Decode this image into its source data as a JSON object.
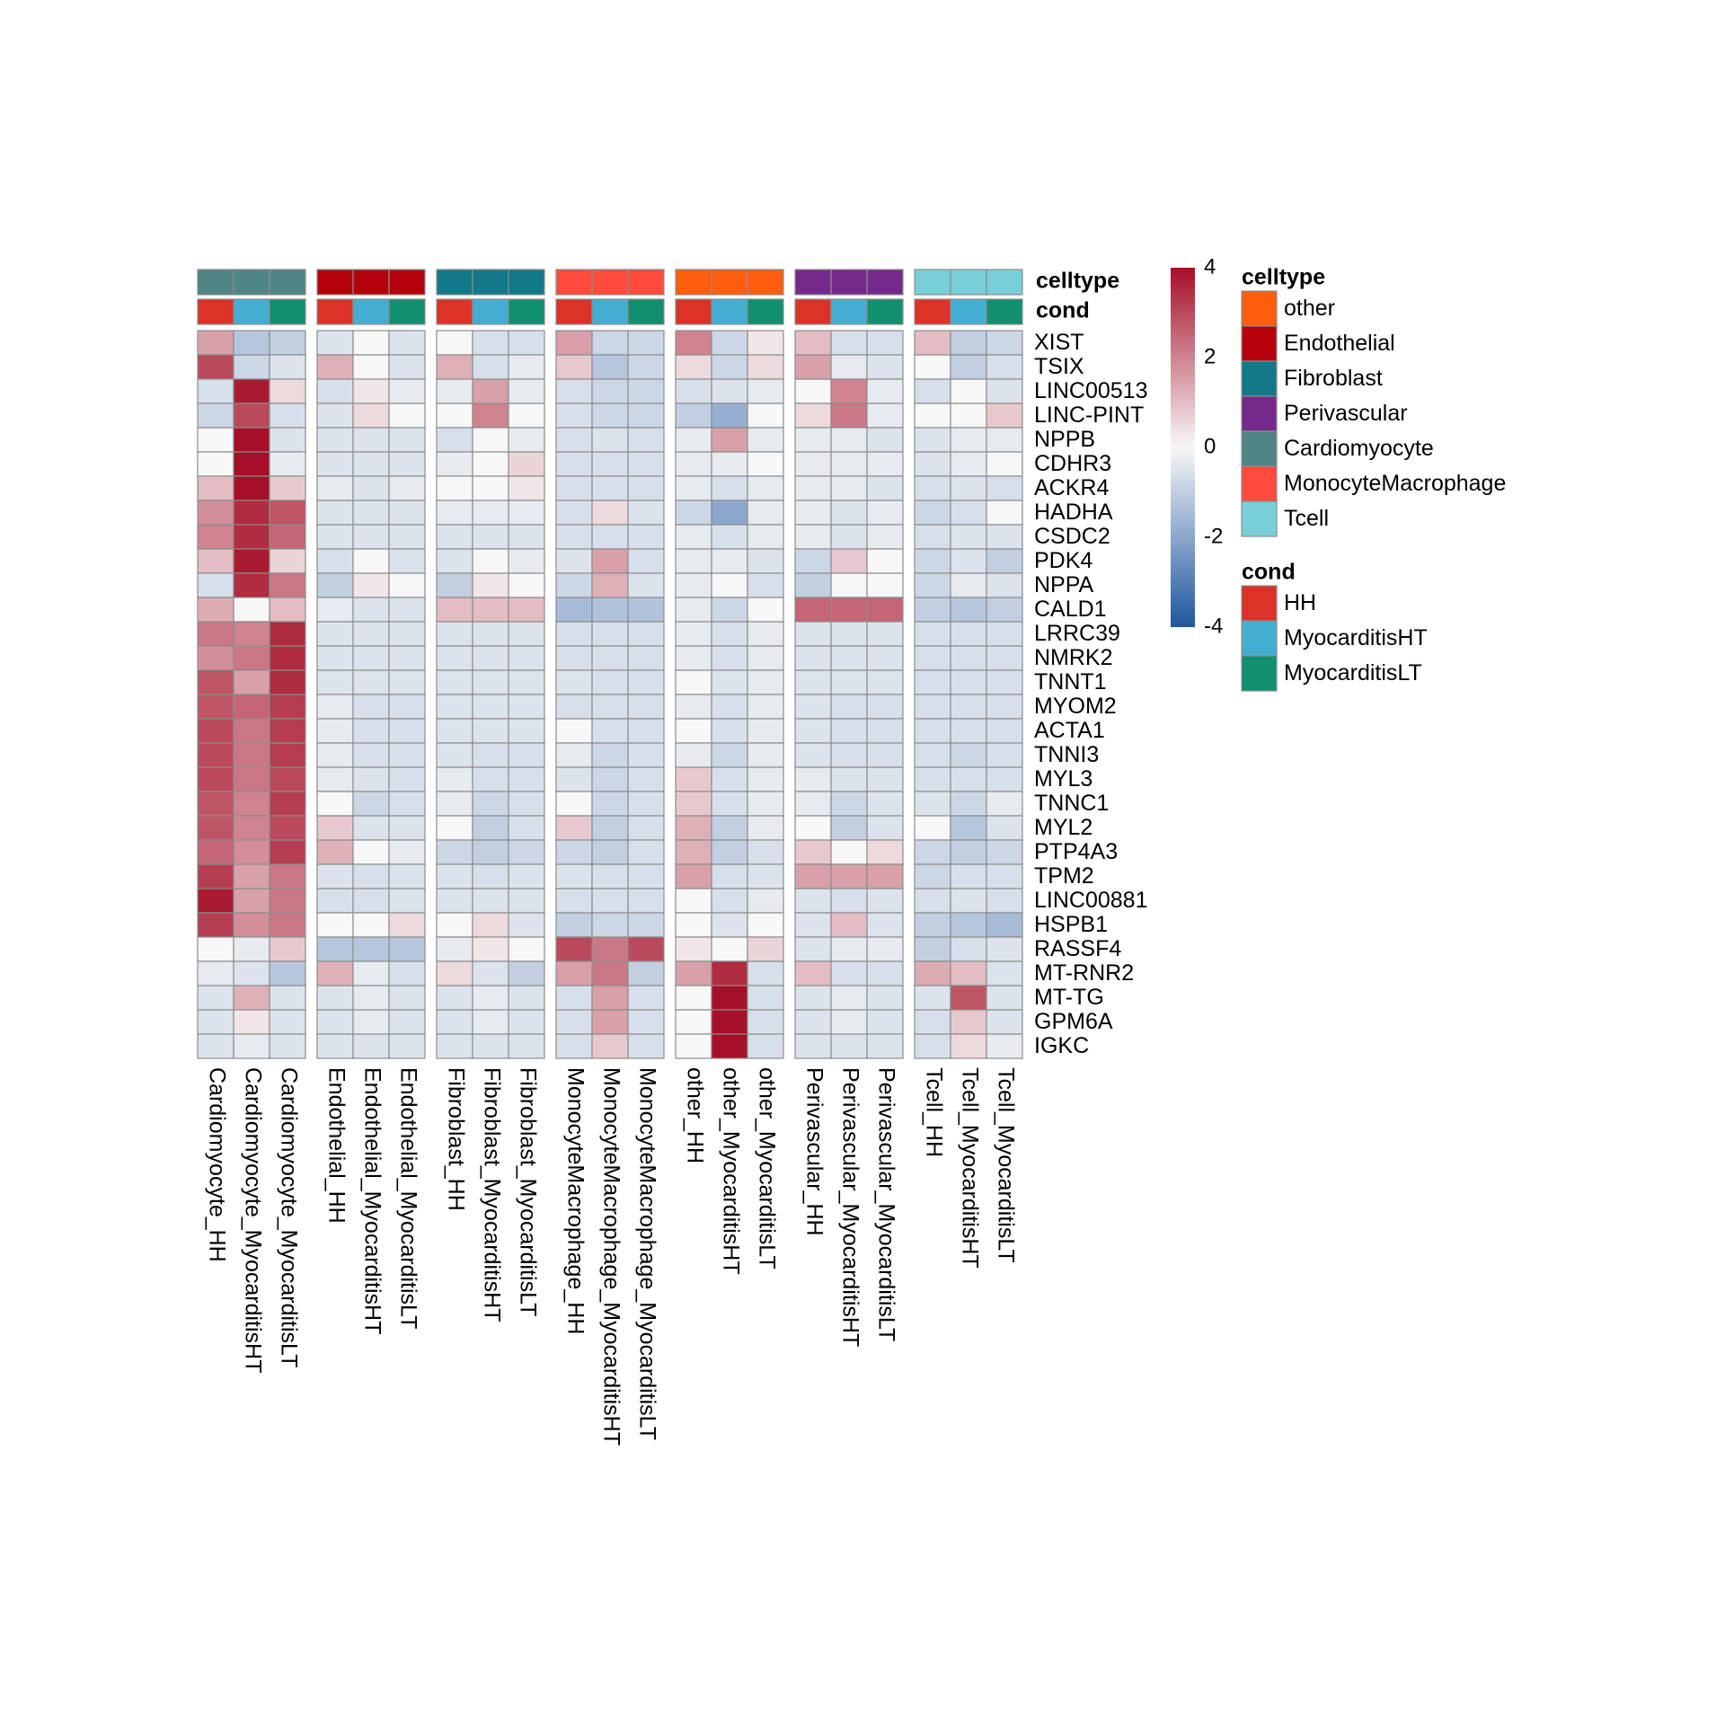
{
  "chart_data": {
    "type": "heatmap",
    "title": "",
    "colorbar": {
      "min": -4,
      "max": 4,
      "ticks": [
        4,
        2,
        0,
        -2,
        -4
      ],
      "low_color": "#1F56A0",
      "mid_color": "#F7F7F7",
      "high_color": "#A50F27"
    },
    "annotation_labels": {
      "celltype": "celltype",
      "cond": "cond"
    },
    "celltype_colors": {
      "other": "#FF5E0F",
      "Endothelial": "#B4000B",
      "Fibroblast": "#12798A",
      "Perivascular": "#752A8B",
      "Cardiomyocyte": "#4F8585",
      "MonocyteMacrophage": "#FF4B3C",
      "Tcell": "#78CFD8"
    },
    "cond_colors": {
      "HH": "#DC3227",
      "MyocarditisHT": "#43AED1",
      "MyocarditisLT": "#128F6F"
    },
    "legend": {
      "celltype": {
        "title": "celltype",
        "entries": [
          "other",
          "Endothelial",
          "Fibroblast",
          "Perivascular",
          "Cardiomyocyte",
          "MonocyteMacrophage",
          "Tcell"
        ]
      },
      "cond": {
        "title": "cond",
        "entries": [
          "HH",
          "MyocarditisHT",
          "MyocarditisLT"
        ]
      }
    },
    "column_groups": [
      {
        "celltype": "Cardiomyocyte",
        "columns": [
          {
            "name": "Cardiomyocyte_HH",
            "cond": "HH"
          },
          {
            "name": "Cardiomyocyte_MyocarditisHT",
            "cond": "MyocarditisHT"
          },
          {
            "name": "Cardiomyocyte_MyocarditisLT",
            "cond": "MyocarditisLT"
          }
        ]
      },
      {
        "celltype": "Endothelial",
        "columns": [
          {
            "name": "Endothelial_HH",
            "cond": "HH"
          },
          {
            "name": "Endothelial_MyocarditisHT",
            "cond": "MyocarditisHT"
          },
          {
            "name": "Endothelial_MyocarditisLT",
            "cond": "MyocarditisLT"
          }
        ]
      },
      {
        "celltype": "Fibroblast",
        "columns": [
          {
            "name": "Fibroblast_HH",
            "cond": "HH"
          },
          {
            "name": "Fibroblast_MyocarditisHT",
            "cond": "MyocarditisHT"
          },
          {
            "name": "Fibroblast_MyocarditisLT",
            "cond": "MyocarditisLT"
          }
        ]
      },
      {
        "celltype": "MonocyteMacrophage",
        "columns": [
          {
            "name": "MonocyteMacrophage_HH",
            "cond": "HH"
          },
          {
            "name": "MonocyteMacrophage_MyocarditisHT",
            "cond": "MyocarditisHT"
          },
          {
            "name": "MonocyteMacrophage_MyocarditisLT",
            "cond": "MyocarditisLT"
          }
        ]
      },
      {
        "celltype": "other",
        "columns": [
          {
            "name": "other_HH",
            "cond": "HH"
          },
          {
            "name": "other_MyocarditisHT",
            "cond": "MyocarditisHT"
          },
          {
            "name": "other_MyocarditisLT",
            "cond": "MyocarditisLT"
          }
        ]
      },
      {
        "celltype": "Perivascular",
        "columns": [
          {
            "name": "Perivascular_HH",
            "cond": "HH"
          },
          {
            "name": "Perivascular_MyocarditisHT",
            "cond": "MyocarditisHT"
          },
          {
            "name": "Perivascular_MyocarditisLT",
            "cond": "MyocarditisLT"
          }
        ]
      },
      {
        "celltype": "Tcell",
        "columns": [
          {
            "name": "Tcell_HH",
            "cond": "HH"
          },
          {
            "name": "Tcell_MyocarditisHT",
            "cond": "MyocarditisHT"
          },
          {
            "name": "Tcell_MyocarditisLT",
            "cond": "MyocarditisLT"
          }
        ]
      }
    ],
    "rows": [
      "XIST",
      "TSIX",
      "LINC00513",
      "LINC-PINT",
      "NPPB",
      "CDHR3",
      "ACKR4",
      "HADHA",
      "CSDC2",
      "PDK4",
      "NPPA",
      "CALD1",
      "LRRC39",
      "NMRK2",
      "TNNT1",
      "MYOM2",
      "ACTA1",
      "TNNI3",
      "MYL3",
      "TNNC1",
      "MYL2",
      "PTP4A3",
      "TPM2",
      "LINC00881",
      "HSPB1",
      "RASSF4",
      "MT-RNR2",
      "MT-TG",
      "GPM6A",
      "IGKC"
    ],
    "values": [
      [
        1.5,
        -1.2,
        -1.0,
        -0.5,
        0.0,
        -0.5,
        0.0,
        -0.6,
        -0.6,
        1.5,
        -0.8,
        -0.8,
        2.0,
        -0.8,
        0.3,
        1.0,
        -0.6,
        -0.6,
        1.0,
        -1.0,
        -0.8
      ],
      [
        3.0,
        -0.8,
        -0.5,
        1.2,
        0.0,
        -0.5,
        1.2,
        -0.6,
        -0.3,
        0.8,
        -1.2,
        -0.8,
        0.5,
        -0.8,
        0.5,
        1.5,
        -0.3,
        -0.5,
        0.0,
        -1.0,
        -0.6
      ],
      [
        -0.6,
        3.8,
        0.5,
        -0.6,
        0.3,
        -0.3,
        -0.3,
        1.5,
        -0.3,
        -0.6,
        -0.8,
        -0.8,
        -0.6,
        -0.5,
        -0.3,
        0.0,
        2.0,
        -0.3,
        -0.6,
        0.0,
        -0.5
      ],
      [
        -0.8,
        3.0,
        -0.6,
        -0.5,
        0.5,
        0.0,
        0.0,
        2.0,
        0.0,
        -0.6,
        -0.8,
        -0.8,
        -1.0,
        -1.8,
        0.0,
        0.5,
        2.2,
        -0.3,
        0.0,
        0.0,
        0.8
      ],
      [
        0.0,
        4.0,
        -0.5,
        -0.5,
        -0.5,
        -0.5,
        -0.6,
        0.0,
        -0.3,
        -0.6,
        -0.5,
        -0.6,
        -0.3,
        1.5,
        -0.3,
        -0.3,
        -0.3,
        -0.5,
        -0.5,
        -0.3,
        -0.3
      ],
      [
        0.0,
        4.0,
        -0.3,
        -0.5,
        -0.5,
        -0.5,
        -0.3,
        0.0,
        0.6,
        -0.6,
        -0.6,
        -0.6,
        -0.3,
        -0.3,
        0.0,
        -0.3,
        -0.3,
        -0.3,
        -0.5,
        -0.3,
        0.0
      ],
      [
        1.0,
        4.0,
        0.8,
        -0.3,
        -0.5,
        -0.3,
        0.0,
        0.0,
        0.3,
        -0.6,
        -0.6,
        -0.6,
        -0.3,
        -0.6,
        -0.3,
        -0.3,
        -0.3,
        -0.5,
        -0.6,
        -0.5,
        -0.6
      ],
      [
        1.8,
        3.5,
        2.8,
        -0.5,
        -0.5,
        -0.5,
        -0.3,
        -0.3,
        -0.3,
        -0.6,
        0.5,
        -0.5,
        -0.8,
        -2.0,
        -0.3,
        -0.3,
        -0.5,
        -0.3,
        -0.8,
        -0.6,
        0.0
      ],
      [
        2.0,
        3.5,
        2.5,
        -0.5,
        -0.5,
        -0.5,
        -0.5,
        -0.5,
        -0.5,
        -0.6,
        -0.6,
        -0.6,
        -0.3,
        -0.6,
        -0.3,
        -0.3,
        -0.5,
        -0.3,
        -0.6,
        -0.5,
        -0.5
      ],
      [
        1.0,
        3.8,
        0.6,
        -0.6,
        0.0,
        -0.5,
        -0.5,
        0.0,
        -0.3,
        -0.5,
        1.5,
        -0.6,
        -0.3,
        -0.3,
        -0.5,
        -0.8,
        0.8,
        0.0,
        -0.8,
        -0.5,
        -1.0
      ],
      [
        -0.6,
        3.5,
        2.2,
        -1.0,
        0.3,
        0.0,
        -1.0,
        0.3,
        0.0,
        -0.8,
        1.2,
        -0.5,
        -0.3,
        0.0,
        -0.6,
        -1.0,
        0.0,
        0.0,
        -0.8,
        -0.3,
        -0.5
      ],
      [
        1.3,
        0.0,
        1.0,
        -0.3,
        -0.5,
        -0.5,
        1.0,
        1.0,
        1.0,
        -1.5,
        -1.3,
        -1.3,
        -0.3,
        -0.8,
        0.0,
        2.5,
        2.5,
        2.5,
        -1.0,
        -1.2,
        -1.0
      ],
      [
        2.2,
        2.0,
        3.5,
        -0.5,
        -0.5,
        -0.5,
        -0.5,
        -0.5,
        -0.5,
        -0.6,
        -0.6,
        -0.6,
        -0.3,
        -0.6,
        -0.3,
        -0.5,
        -0.5,
        -0.5,
        -0.6,
        -0.6,
        -0.6
      ],
      [
        1.8,
        2.2,
        3.5,
        -0.5,
        -0.5,
        -0.5,
        -0.5,
        -0.5,
        -0.5,
        -0.6,
        -0.6,
        -0.6,
        -0.3,
        -0.6,
        -0.3,
        -0.5,
        -0.5,
        -0.5,
        -0.6,
        -0.6,
        -0.6
      ],
      [
        2.8,
        1.5,
        3.5,
        -0.5,
        -0.5,
        -0.5,
        -0.5,
        -0.5,
        -0.5,
        -0.5,
        -0.6,
        -0.6,
        0.0,
        -0.5,
        -0.3,
        -0.5,
        -0.5,
        -0.5,
        -0.6,
        -0.6,
        -0.6
      ],
      [
        2.8,
        2.5,
        3.2,
        -0.3,
        -0.6,
        -0.6,
        -0.5,
        -0.5,
        -0.5,
        -0.6,
        -0.6,
        -0.6,
        -0.3,
        -0.6,
        -0.3,
        -0.5,
        -0.6,
        -0.6,
        -0.6,
        -0.6,
        -0.6
      ],
      [
        3.0,
        2.2,
        3.2,
        -0.3,
        -0.6,
        -0.6,
        -0.5,
        -0.5,
        -0.5,
        0.0,
        -0.6,
        -0.6,
        0.0,
        -0.6,
        -0.3,
        -0.5,
        -0.6,
        -0.6,
        -0.6,
        -0.6,
        -0.6
      ],
      [
        3.0,
        2.2,
        3.2,
        -0.3,
        -0.6,
        -0.6,
        -0.5,
        -0.6,
        -0.6,
        -0.3,
        -0.8,
        -0.6,
        -0.3,
        -0.8,
        -0.3,
        -0.5,
        -0.6,
        -0.6,
        -0.6,
        -0.8,
        -0.6
      ],
      [
        3.0,
        2.2,
        3.0,
        -0.3,
        -0.5,
        -0.6,
        -0.3,
        -0.6,
        -0.6,
        -0.5,
        -0.8,
        -0.6,
        0.8,
        -0.6,
        -0.3,
        -0.3,
        -0.5,
        -0.5,
        -0.6,
        -0.6,
        -0.6
      ],
      [
        2.8,
        2.0,
        3.2,
        0.0,
        -0.8,
        -0.6,
        -0.3,
        -0.8,
        -0.6,
        0.0,
        -0.8,
        -0.6,
        0.8,
        -0.6,
        -0.3,
        -0.3,
        -0.8,
        -0.5,
        -0.5,
        -0.8,
        -0.3
      ],
      [
        2.8,
        2.0,
        3.0,
        0.8,
        -0.5,
        -0.5,
        0.0,
        -1.0,
        -0.6,
        0.8,
        -1.0,
        -0.6,
        1.2,
        -1.0,
        -0.3,
        0.0,
        -1.0,
        -0.5,
        0.0,
        -1.2,
        -0.5
      ],
      [
        2.5,
        1.8,
        3.2,
        1.2,
        0.0,
        -0.3,
        -0.8,
        -1.0,
        -0.8,
        -0.8,
        -1.0,
        -0.6,
        1.2,
        -1.0,
        -0.6,
        0.8,
        0.0,
        0.5,
        -0.8,
        -1.0,
        -0.8
      ],
      [
        3.2,
        1.5,
        2.2,
        -0.5,
        -0.6,
        -0.5,
        -0.5,
        -0.6,
        -0.5,
        -0.5,
        -0.6,
        -0.6,
        1.5,
        -0.6,
        -0.5,
        1.5,
        1.5,
        1.5,
        -0.8,
        -0.6,
        -0.6
      ],
      [
        3.8,
        1.5,
        2.2,
        -0.6,
        -0.6,
        -0.5,
        -0.5,
        -0.5,
        -0.5,
        -0.6,
        -0.6,
        -0.6,
        0.0,
        -0.6,
        -0.3,
        -0.5,
        -0.6,
        -0.5,
        -0.6,
        -0.5,
        -0.6
      ],
      [
        3.2,
        1.8,
        2.2,
        0.0,
        0.0,
        0.5,
        0.0,
        0.5,
        -0.5,
        -1.0,
        -0.8,
        -0.8,
        0.0,
        -0.5,
        0.0,
        -0.5,
        1.0,
        -0.5,
        -1.0,
        -1.2,
        -1.5
      ],
      [
        0.0,
        -0.3,
        0.8,
        -1.2,
        -1.2,
        -1.2,
        -0.3,
        0.3,
        0.0,
        3.0,
        2.2,
        3.0,
        0.3,
        0.0,
        0.6,
        -0.5,
        -0.3,
        -0.3,
        -1.0,
        -0.6,
        -0.5
      ],
      [
        -0.3,
        -0.5,
        -1.2,
        1.2,
        -0.3,
        -0.6,
        0.5,
        -0.5,
        -1.0,
        1.5,
        2.2,
        -1.0,
        1.5,
        3.5,
        -0.6,
        1.0,
        -0.6,
        -0.6,
        1.3,
        1.0,
        -0.5
      ],
      [
        -0.5,
        1.2,
        -0.5,
        -0.5,
        -0.3,
        -0.5,
        -0.5,
        -0.3,
        -0.5,
        -0.6,
        1.5,
        -0.6,
        0.0,
        4.0,
        -0.6,
        -0.5,
        -0.3,
        -0.5,
        -0.5,
        2.8,
        -0.5
      ],
      [
        -0.5,
        0.3,
        -0.5,
        -0.5,
        -0.3,
        -0.5,
        -0.5,
        -0.3,
        -0.5,
        -0.6,
        1.5,
        -0.6,
        0.0,
        4.0,
        -0.6,
        -0.5,
        -0.3,
        -0.5,
        -0.6,
        0.8,
        -0.5
      ],
      [
        -0.5,
        -0.3,
        -0.5,
        -0.5,
        -0.5,
        -0.5,
        -0.5,
        -0.5,
        -0.5,
        -0.6,
        0.8,
        -0.6,
        0.0,
        4.2,
        -0.6,
        -0.5,
        -0.5,
        -0.5,
        -0.6,
        0.5,
        -0.3
      ]
    ]
  }
}
